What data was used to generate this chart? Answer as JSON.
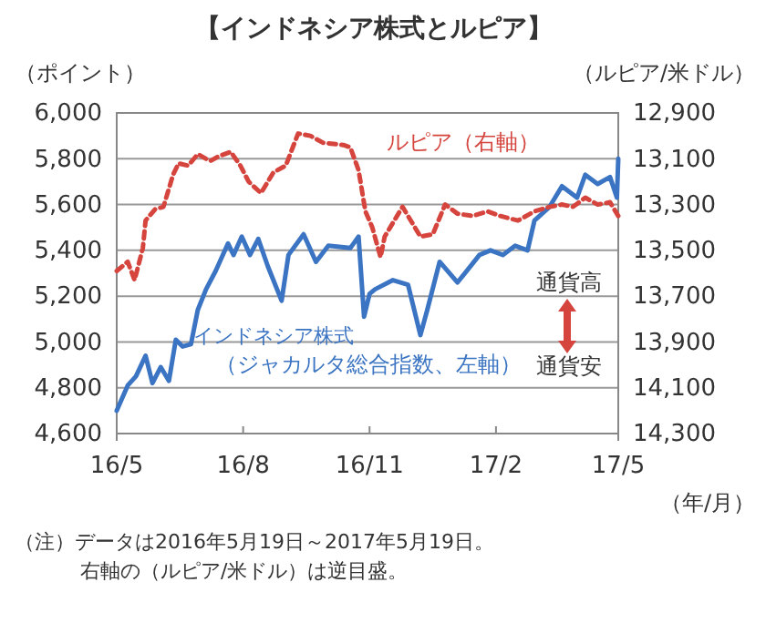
{
  "chart_data": {
    "type": "line",
    "title": "【インドネシア株式とルピア】",
    "xlabel": "（年/月）",
    "ylabel": "（ポイント）",
    "y2label": "（ルピア/米ドル）",
    "xlim": [
      "2016-05-19",
      "2017-05-19"
    ],
    "xticks": [
      {
        "value": "2016-05-19",
        "label": "16/5"
      },
      {
        "value": "2016-08-19",
        "label": "16/8"
      },
      {
        "value": "2016-11-19",
        "label": "16/11"
      },
      {
        "value": "2017-02-19",
        "label": "17/2"
      },
      {
        "value": "2017-05-19",
        "label": "17/5"
      }
    ],
    "ylim": [
      4600,
      6000
    ],
    "yticks": [
      {
        "value": 4600,
        "label": "4,600"
      },
      {
        "value": 4800,
        "label": "4,800"
      },
      {
        "value": 5000,
        "label": "5,000"
      },
      {
        "value": 5200,
        "label": "5,200"
      },
      {
        "value": 5400,
        "label": "5,400"
      },
      {
        "value": 5600,
        "label": "5,600"
      },
      {
        "value": 5800,
        "label": "5,800"
      },
      {
        "value": 6000,
        "label": "6,000"
      }
    ],
    "y2lim": [
      14300,
      12900
    ],
    "y2ticks": [
      {
        "value": 12900,
        "label": "12,900"
      },
      {
        "value": 13100,
        "label": "13,100"
      },
      {
        "value": 13300,
        "label": "13,300"
      },
      {
        "value": 13500,
        "label": "13,500"
      },
      {
        "value": 13700,
        "label": "13,700"
      },
      {
        "value": 13900,
        "label": "13,900"
      },
      {
        "value": 14100,
        "label": "14,100"
      },
      {
        "value": 14300,
        "label": "14,300"
      }
    ],
    "grid": "y",
    "series": [
      {
        "name": "インドネシア株式",
        "color": "#3b74c2",
        "line_style": "solid",
        "x": [
          "2016-05-19",
          "2016-05-27",
          "2016-06-02",
          "2016-06-09",
          "2016-06-14",
          "2016-06-20",
          "2016-06-26",
          "2016-07-01",
          "2016-07-06",
          "2016-07-12",
          "2016-07-17",
          "2016-07-23",
          "2016-07-30",
          "2016-08-08",
          "2016-08-12",
          "2016-08-18",
          "2016-08-24",
          "2016-08-30",
          "2016-09-06",
          "2016-09-16",
          "2016-09-21",
          "2016-10-02",
          "2016-10-11",
          "2016-10-20",
          "2016-11-05",
          "2016-11-11",
          "2016-11-15",
          "2016-11-19",
          "2016-11-23",
          "2016-12-06",
          "2016-12-17",
          "2016-12-26",
          "2016-12-31",
          "2017-01-09",
          "2017-01-22",
          "2017-02-07",
          "2017-02-15",
          "2017-02-24",
          "2017-03-05",
          "2017-03-14",
          "2017-03-19",
          "2017-03-30",
          "2017-04-08",
          "2017-04-19",
          "2017-04-25",
          "2017-05-04",
          "2017-05-13",
          "2017-05-18",
          "2017-05-19"
        ],
        "values": [
          4700,
          4810,
          4850,
          4940,
          4820,
          4890,
          4830,
          5010,
          4980,
          4990,
          5140,
          5230,
          5310,
          5430,
          5380,
          5460,
          5380,
          5450,
          5330,
          5180,
          5380,
          5470,
          5350,
          5420,
          5410,
          5460,
          5110,
          5210,
          5230,
          5270,
          5250,
          5030,
          5140,
          5350,
          5260,
          5380,
          5400,
          5380,
          5420,
          5400,
          5530,
          5590,
          5680,
          5630,
          5730,
          5690,
          5720,
          5630,
          5800
        ]
      },
      {
        "name": "ルピア（右軸）",
        "color": "#d5453e",
        "axis": "y2",
        "line_style": "dashed",
        "x": [
          "2016-05-19",
          "2016-05-27",
          "2016-06-01",
          "2016-06-07",
          "2016-06-09",
          "2016-06-16",
          "2016-06-22",
          "2016-06-29",
          "2016-07-03",
          "2016-07-10",
          "2016-07-17",
          "2016-07-26",
          "2016-08-01",
          "2016-08-10",
          "2016-08-17",
          "2016-08-23",
          "2016-09-01",
          "2016-09-10",
          "2016-09-19",
          "2016-09-28",
          "2016-10-07",
          "2016-10-16",
          "2016-10-31",
          "2016-11-05",
          "2016-11-11",
          "2016-11-16",
          "2016-11-21",
          "2016-11-27",
          "2016-11-30",
          "2016-12-13",
          "2016-12-26",
          "2017-01-04",
          "2017-01-13",
          "2017-01-22",
          "2017-02-02",
          "2017-02-13",
          "2017-02-22",
          "2017-03-07",
          "2017-03-19",
          "2017-03-30",
          "2017-04-08",
          "2017-04-16",
          "2017-04-25",
          "2017-05-04",
          "2017-05-13",
          "2017-05-19"
        ],
        "values": [
          13590,
          13550,
          13630,
          13490,
          13370,
          13320,
          13310,
          13170,
          13120,
          13130,
          13080,
          13110,
          13090,
          13070,
          13130,
          13200,
          13250,
          13160,
          13130,
          12990,
          13000,
          13030,
          13040,
          13050,
          13150,
          13330,
          13400,
          13530,
          13440,
          13310,
          13440,
          13430,
          13300,
          13340,
          13350,
          13330,
          13350,
          13370,
          13330,
          13310,
          13300,
          13310,
          13270,
          13300,
          13290,
          13350
        ]
      }
    ],
    "annotations": [
      "（ジャカルタ総合指数、左軸）",
      "通貨高",
      "通貨安",
      "（注）データは2016年5月19日～2017年5月19日。",
      "右軸の（ルピア/米ドル）は逆目盛。"
    ]
  }
}
